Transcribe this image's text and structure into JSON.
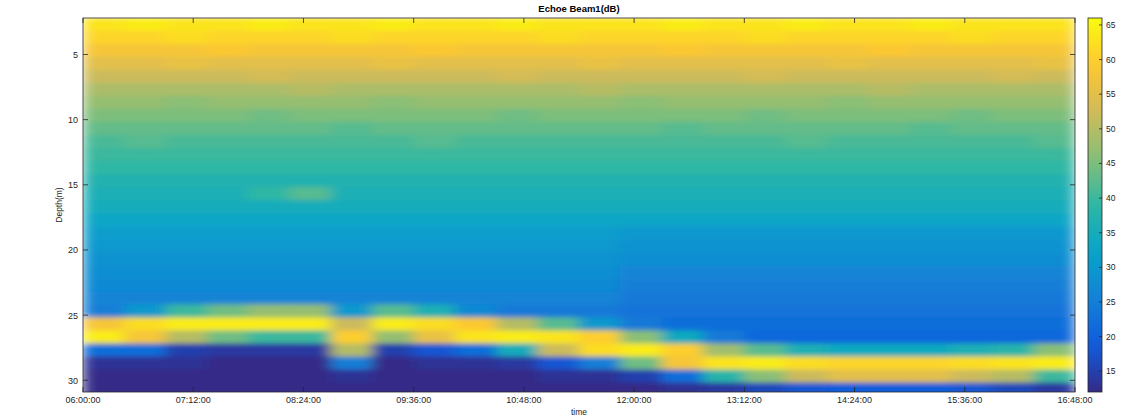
{
  "chart_data": {
    "type": "heatmap",
    "title": "Echoe Beam1(dB)",
    "x_label": "time",
    "y_label": "Depth(m)",
    "x": [
      373.5,
      400.5,
      427.5,
      454.5,
      481.5,
      508.5,
      535.5,
      562.5,
      589.5,
      616.5,
      643.5,
      670.5,
      697.5,
      724.5,
      751.5,
      778.5,
      805.5,
      832.5,
      859.5,
      886.5,
      913.5,
      940.5,
      967.5,
      994.5
    ],
    "y": [
      2.7,
      3.7,
      4.7,
      5.7,
      6.7,
      7.7,
      8.7,
      9.7,
      10.7,
      11.7,
      12.7,
      13.7,
      14.7,
      15.7,
      16.7,
      17.7,
      18.7,
      19.7,
      20.7,
      21.7,
      22.7,
      23.7,
      24.7,
      25.7,
      26.7,
      27.7,
      28.7,
      29.7,
      30.7
    ],
    "cells": [
      [
        63,
        64,
        63,
        63,
        64,
        63,
        63,
        64,
        63,
        63,
        64,
        63,
        63,
        63,
        64,
        63,
        63,
        64,
        63,
        63,
        64,
        63,
        63,
        63
      ],
      [
        61,
        61,
        62,
        61,
        61,
        61,
        62,
        61,
        61,
        61,
        61,
        62,
        61,
        61,
        61,
        61,
        62,
        61,
        61,
        61,
        61,
        62,
        61,
        61
      ],
      [
        58,
        58,
        58,
        59,
        58,
        58,
        58,
        58,
        59,
        58,
        58,
        58,
        58,
        58,
        59,
        58,
        58,
        58,
        58,
        59,
        58,
        58,
        58,
        58
      ],
      [
        55,
        55,
        56,
        55,
        55,
        55,
        55,
        56,
        55,
        55,
        55,
        55,
        56,
        55,
        55,
        55,
        55,
        55,
        56,
        55,
        55,
        55,
        55,
        56
      ],
      [
        52,
        52,
        52,
        52,
        53,
        52,
        52,
        52,
        52,
        52,
        53,
        52,
        52,
        52,
        52,
        52,
        53,
        52,
        52,
        52,
        52,
        52,
        53,
        52
      ],
      [
        49,
        49,
        49,
        49,
        49,
        50,
        49,
        49,
        49,
        49,
        49,
        49,
        50,
        49,
        49,
        49,
        49,
        49,
        49,
        50,
        49,
        49,
        49,
        49
      ],
      [
        47,
        47,
        46,
        47,
        47,
        47,
        47,
        46,
        47,
        47,
        47,
        47,
        47,
        46,
        47,
        47,
        47,
        47,
        46,
        47,
        47,
        47,
        47,
        47
      ],
      [
        45,
        45,
        45,
        45,
        44,
        45,
        45,
        45,
        45,
        45,
        44,
        45,
        45,
        45,
        45,
        45,
        44,
        45,
        45,
        45,
        45,
        44,
        45,
        45
      ],
      [
        43,
        43,
        43,
        43,
        43,
        43,
        42,
        43,
        43,
        43,
        43,
        43,
        43,
        43,
        42,
        43,
        43,
        43,
        43,
        43,
        42,
        43,
        43,
        43
      ],
      [
        41,
        42,
        41,
        41,
        41,
        41,
        41,
        41,
        42,
        41,
        41,
        41,
        41,
        41,
        41,
        41,
        41,
        42,
        41,
        41,
        41,
        41,
        41,
        42
      ],
      [
        40,
        40,
        40,
        40,
        40,
        40,
        40,
        40,
        40,
        40,
        40,
        40,
        40,
        40,
        40,
        40,
        40,
        40,
        40,
        40,
        40,
        40,
        40,
        40
      ],
      [
        39,
        39,
        39,
        39,
        39,
        39,
        39,
        39,
        39,
        39,
        39,
        39,
        39,
        39,
        39,
        39,
        39,
        39,
        39,
        39,
        39,
        39,
        39,
        39
      ],
      [
        37,
        37,
        37,
        37,
        37,
        37,
        37,
        37,
        37,
        37,
        37,
        37,
        37,
        37,
        37,
        37,
        37,
        37,
        37,
        37,
        37,
        37,
        37,
        37
      ],
      [
        36,
        36,
        36,
        36,
        39,
        42,
        36,
        36,
        36,
        36,
        36,
        36,
        36,
        36,
        36,
        36,
        36,
        36,
        36,
        36,
        36,
        36,
        36,
        36
      ],
      [
        35,
        35,
        35,
        35,
        35,
        35,
        35,
        35,
        35,
        35,
        35,
        35,
        35,
        35,
        35,
        35,
        35,
        35,
        35,
        35,
        35,
        35,
        35,
        35
      ],
      [
        33,
        33,
        33,
        33,
        33,
        33,
        33,
        33,
        33,
        33,
        33,
        33,
        33,
        33,
        33,
        33,
        33,
        33,
        33,
        33,
        33,
        33,
        33,
        33
      ],
      [
        31,
        31,
        31,
        31,
        31,
        31,
        31,
        31,
        31,
        31,
        31,
        31,
        31,
        30,
        30,
        30,
        30,
        30,
        30,
        30,
        30,
        30,
        30,
        30
      ],
      [
        30,
        30,
        30,
        30,
        30,
        30,
        30,
        30,
        30,
        30,
        30,
        30,
        30,
        29,
        29,
        29,
        29,
        29,
        29,
        29,
        29,
        29,
        29,
        29
      ],
      [
        29,
        29,
        29,
        29,
        29,
        29,
        29,
        29,
        29,
        29,
        29,
        29,
        29,
        28,
        28,
        28,
        28,
        28,
        28,
        28,
        28,
        28,
        28,
        28
      ],
      [
        28,
        28,
        28,
        28,
        28,
        28,
        28,
        28,
        28,
        28,
        28,
        28,
        28,
        26,
        26,
        26,
        26,
        26,
        26,
        26,
        26,
        26,
        26,
        26
      ],
      [
        27,
        27,
        27,
        27,
        27,
        27,
        27,
        27,
        27,
        27,
        27,
        27,
        27,
        25,
        25,
        25,
        25,
        25,
        25,
        25,
        25,
        25,
        25,
        25
      ],
      [
        26,
        26,
        26,
        26,
        26,
        26,
        26,
        26,
        26,
        26,
        26,
        26,
        26,
        24,
        24,
        24,
        24,
        24,
        24,
        24,
        24,
        24,
        24,
        24
      ],
      [
        25,
        30,
        40,
        44,
        47,
        47,
        30,
        42,
        36,
        27,
        24,
        24,
        24,
        23,
        23,
        23,
        23,
        23,
        23,
        23,
        23,
        23,
        23,
        23
      ],
      [
        58,
        62,
        64,
        64,
        64,
        64,
        52,
        64,
        62,
        59,
        50,
        42,
        30,
        24,
        22,
        22,
        22,
        22,
        22,
        22,
        22,
        22,
        22,
        22
      ],
      [
        64,
        58,
        50,
        44,
        40,
        40,
        60,
        47,
        56,
        63,
        64,
        63,
        60,
        46,
        34,
        24,
        21,
        21,
        21,
        21,
        21,
        21,
        21,
        21
      ],
      [
        22,
        22,
        15,
        14,
        14,
        14,
        50,
        15,
        18,
        22,
        35,
        52,
        62,
        64,
        60,
        48,
        42,
        36,
        34,
        34,
        34,
        36,
        38,
        46
      ],
      [
        13,
        13,
        13,
        12,
        12,
        12,
        25,
        12,
        13,
        13,
        14,
        18,
        25,
        44,
        58,
        63,
        64,
        62,
        61,
        61,
        61,
        62,
        63,
        64
      ],
      [
        12,
        12,
        12,
        12,
        12,
        12,
        13,
        12,
        12,
        12,
        12,
        13,
        13,
        15,
        22,
        38,
        46,
        52,
        55,
        55,
        55,
        52,
        50,
        40
      ],
      [
        12,
        12,
        12,
        12,
        12,
        12,
        12,
        12,
        12,
        12,
        12,
        12,
        12,
        12,
        13,
        14,
        16,
        18,
        19,
        19,
        19,
        18,
        16,
        14
      ]
    ],
    "xlim": [
      360,
      1008
    ],
    "xticks": [
      {
        "value": 360,
        "label": "06:00:00"
      },
      {
        "value": 432,
        "label": "07:12:00"
      },
      {
        "value": 504,
        "label": "08:24:00"
      },
      {
        "value": 576,
        "label": "09:36:00"
      },
      {
        "value": 648,
        "label": "10:48:00"
      },
      {
        "value": 720,
        "label": "12:00:00"
      },
      {
        "value": 792,
        "label": "13:12:00"
      },
      {
        "value": 864,
        "label": "14:24:00"
      },
      {
        "value": 936,
        "label": "15:36:00"
      },
      {
        "value": 1008,
        "label": "16:48:00"
      }
    ],
    "ylim": [
      30.9,
      2.2
    ],
    "yticks": [
      5,
      10,
      15,
      20,
      25,
      30
    ],
    "colorbar": {
      "range": [
        12,
        66
      ],
      "ticks": [
        15,
        20,
        25,
        30,
        35,
        40,
        45,
        50,
        55,
        60,
        65
      ]
    },
    "grid": false
  }
}
